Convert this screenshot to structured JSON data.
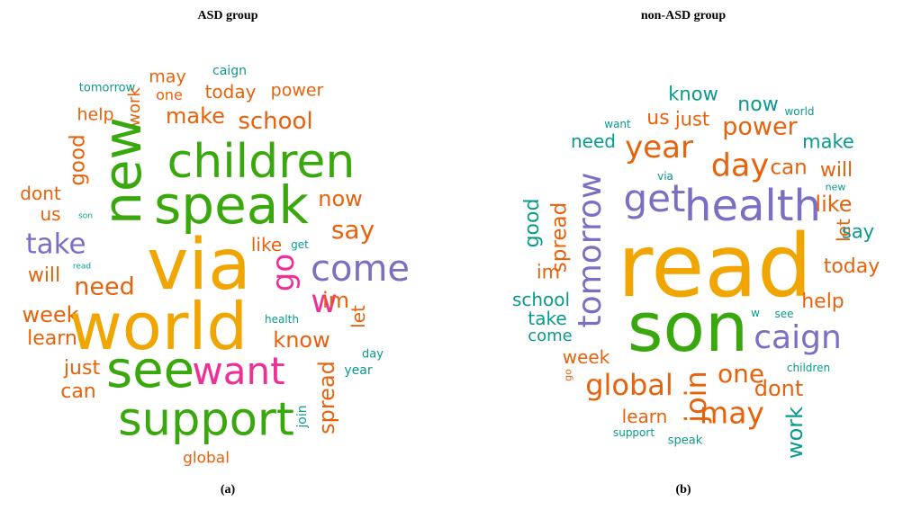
{
  "colors": {
    "orange": "#e8620c",
    "green": "#39a80c",
    "teal": "#0a9a8c",
    "purple": "#7b6fc3",
    "gold": "#f0a500",
    "pink": "#ef2f95"
  },
  "panels": [
    {
      "title": "ASD group",
      "caption": "(a)",
      "words": [
        {
          "text": "may",
          "c": "orange"
        },
        {
          "text": "caign",
          "c": "teal"
        },
        {
          "text": "tomorrow",
          "c": "teal"
        },
        {
          "text": "one",
          "c": "orange"
        },
        {
          "text": "today",
          "c": "orange"
        },
        {
          "text": "power",
          "c": "orange"
        },
        {
          "text": "help",
          "c": "orange"
        },
        {
          "text": "work",
          "c": "orange"
        },
        {
          "text": "make",
          "c": "orange"
        },
        {
          "text": "school",
          "c": "orange"
        },
        {
          "text": "good",
          "c": "orange"
        },
        {
          "text": "children",
          "c": "green"
        },
        {
          "text": "new",
          "c": "green"
        },
        {
          "text": "dont",
          "c": "orange"
        },
        {
          "text": "us",
          "c": "orange"
        },
        {
          "text": "son",
          "c": "teal"
        },
        {
          "text": "speak",
          "c": "green"
        },
        {
          "text": "now",
          "c": "orange"
        },
        {
          "text": "say",
          "c": "orange"
        },
        {
          "text": "take",
          "c": "purple"
        },
        {
          "text": "via",
          "c": "gold"
        },
        {
          "text": "like",
          "c": "orange"
        },
        {
          "text": "get",
          "c": "teal"
        },
        {
          "text": "go",
          "c": "pink"
        },
        {
          "text": "come",
          "c": "purple"
        },
        {
          "text": "read",
          "c": "teal"
        },
        {
          "text": "will",
          "c": "orange"
        },
        {
          "text": "need",
          "c": "orange"
        },
        {
          "text": "w",
          "c": "pink"
        },
        {
          "text": "im",
          "c": "orange"
        },
        {
          "text": "week",
          "c": "orange"
        },
        {
          "text": "world",
          "c": "gold"
        },
        {
          "text": "health",
          "c": "teal"
        },
        {
          "text": "let",
          "c": "orange"
        },
        {
          "text": "learn",
          "c": "orange"
        },
        {
          "text": "know",
          "c": "orange"
        },
        {
          "text": "day",
          "c": "teal"
        },
        {
          "text": "just",
          "c": "orange"
        },
        {
          "text": "see",
          "c": "green"
        },
        {
          "text": "want",
          "c": "pink"
        },
        {
          "text": "year",
          "c": "teal"
        },
        {
          "text": "spread",
          "c": "orange"
        },
        {
          "text": "can",
          "c": "orange"
        },
        {
          "text": "support",
          "c": "green"
        },
        {
          "text": "join",
          "c": "teal"
        },
        {
          "text": "global",
          "c": "orange"
        }
      ]
    },
    {
      "title": "non-ASD group",
      "caption": "(b)",
      "words": [
        {
          "text": "know",
          "c": "teal"
        },
        {
          "text": "now",
          "c": "teal"
        },
        {
          "text": "world",
          "c": "teal"
        },
        {
          "text": "want",
          "c": "teal"
        },
        {
          "text": "us",
          "c": "orange"
        },
        {
          "text": "just",
          "c": "orange"
        },
        {
          "text": "power",
          "c": "orange"
        },
        {
          "text": "need",
          "c": "teal"
        },
        {
          "text": "make",
          "c": "teal"
        },
        {
          "text": "year",
          "c": "orange"
        },
        {
          "text": "day",
          "c": "orange"
        },
        {
          "text": "can",
          "c": "orange"
        },
        {
          "text": "will",
          "c": "orange"
        },
        {
          "text": "via",
          "c": "teal"
        },
        {
          "text": "new",
          "c": "teal"
        },
        {
          "text": "get",
          "c": "purple"
        },
        {
          "text": "health",
          "c": "purple"
        },
        {
          "text": "like",
          "c": "orange"
        },
        {
          "text": "good",
          "c": "teal"
        },
        {
          "text": "spread",
          "c": "orange"
        },
        {
          "text": "tomorrow",
          "c": "purple"
        },
        {
          "text": "let",
          "c": "orange"
        },
        {
          "text": "say",
          "c": "teal"
        },
        {
          "text": "read",
          "c": "gold"
        },
        {
          "text": "today",
          "c": "orange"
        },
        {
          "text": "im",
          "c": "orange"
        },
        {
          "text": "school",
          "c": "teal"
        },
        {
          "text": "help",
          "c": "orange"
        },
        {
          "text": "take",
          "c": "teal"
        },
        {
          "text": "son",
          "c": "green"
        },
        {
          "text": "w",
          "c": "teal"
        },
        {
          "text": "see",
          "c": "teal"
        },
        {
          "text": "caign",
          "c": "purple"
        },
        {
          "text": "come",
          "c": "teal"
        },
        {
          "text": "week",
          "c": "orange"
        },
        {
          "text": "go",
          "c": "orange"
        },
        {
          "text": "join",
          "c": "orange"
        },
        {
          "text": "one",
          "c": "orange"
        },
        {
          "text": "children",
          "c": "teal"
        },
        {
          "text": "global",
          "c": "orange"
        },
        {
          "text": "dont",
          "c": "orange"
        },
        {
          "text": "may",
          "c": "orange"
        },
        {
          "text": "learn",
          "c": "orange"
        },
        {
          "text": "work",
          "c": "teal"
        },
        {
          "text": "support",
          "c": "teal"
        },
        {
          "text": "speak",
          "c": "teal"
        }
      ]
    }
  ]
}
